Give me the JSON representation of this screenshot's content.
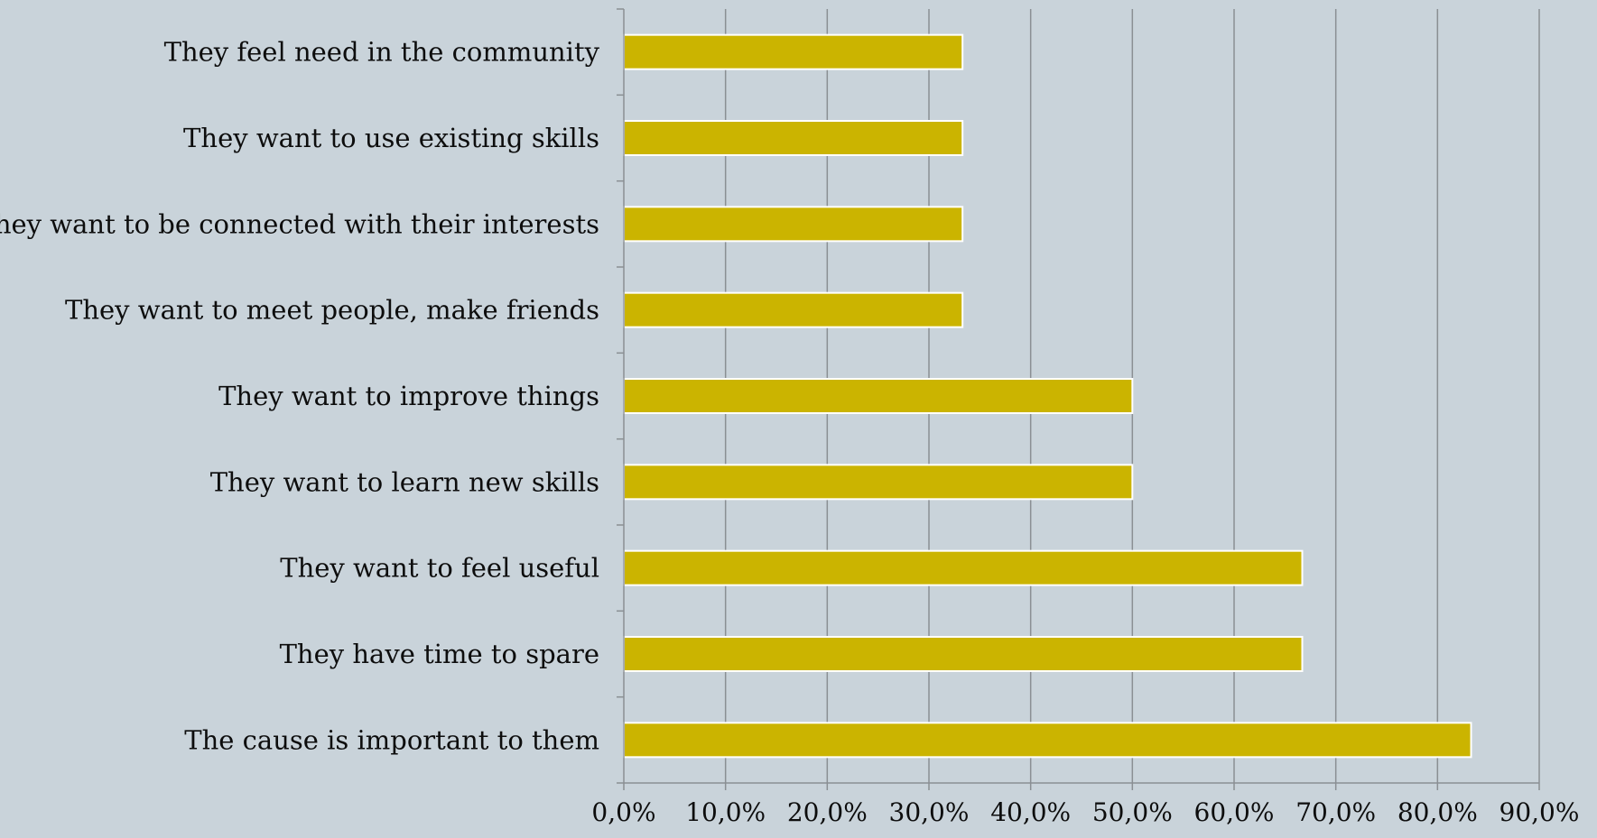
{
  "chart_data": {
    "type": "bar",
    "orientation": "horizontal",
    "title": "",
    "xlabel": "",
    "ylabel": "",
    "categories": [
      "They feel need in the community",
      "They want to use existing skills",
      "They want to be connected with their interests",
      "They want to meet people, make friends",
      "They want to improve things",
      "They want to learn new skills",
      "They want to feel useful",
      "They have time to spare",
      "The cause is important to them"
    ],
    "values": [
      33.3,
      33.3,
      33.3,
      33.3,
      50.0,
      50.0,
      66.7,
      66.7,
      83.3
    ],
    "xlim": [
      0,
      90
    ],
    "x_ticks": [
      0,
      10,
      20,
      30,
      40,
      50,
      60,
      70,
      80,
      90
    ],
    "x_tick_labels": [
      "0,0%",
      "10,0%",
      "20,0%",
      "30,0%",
      "40,0%",
      "50,0%",
      "60,0%",
      "70,0%",
      "80,0%",
      "90,0%"
    ],
    "grid": "vertical",
    "legend": "none",
    "colors": {
      "background": "#c9d3da",
      "bar": "#cbb400",
      "bar_border": "#ffffff",
      "gridline": "#8a8f93",
      "axis": "#8a8f93"
    }
  }
}
